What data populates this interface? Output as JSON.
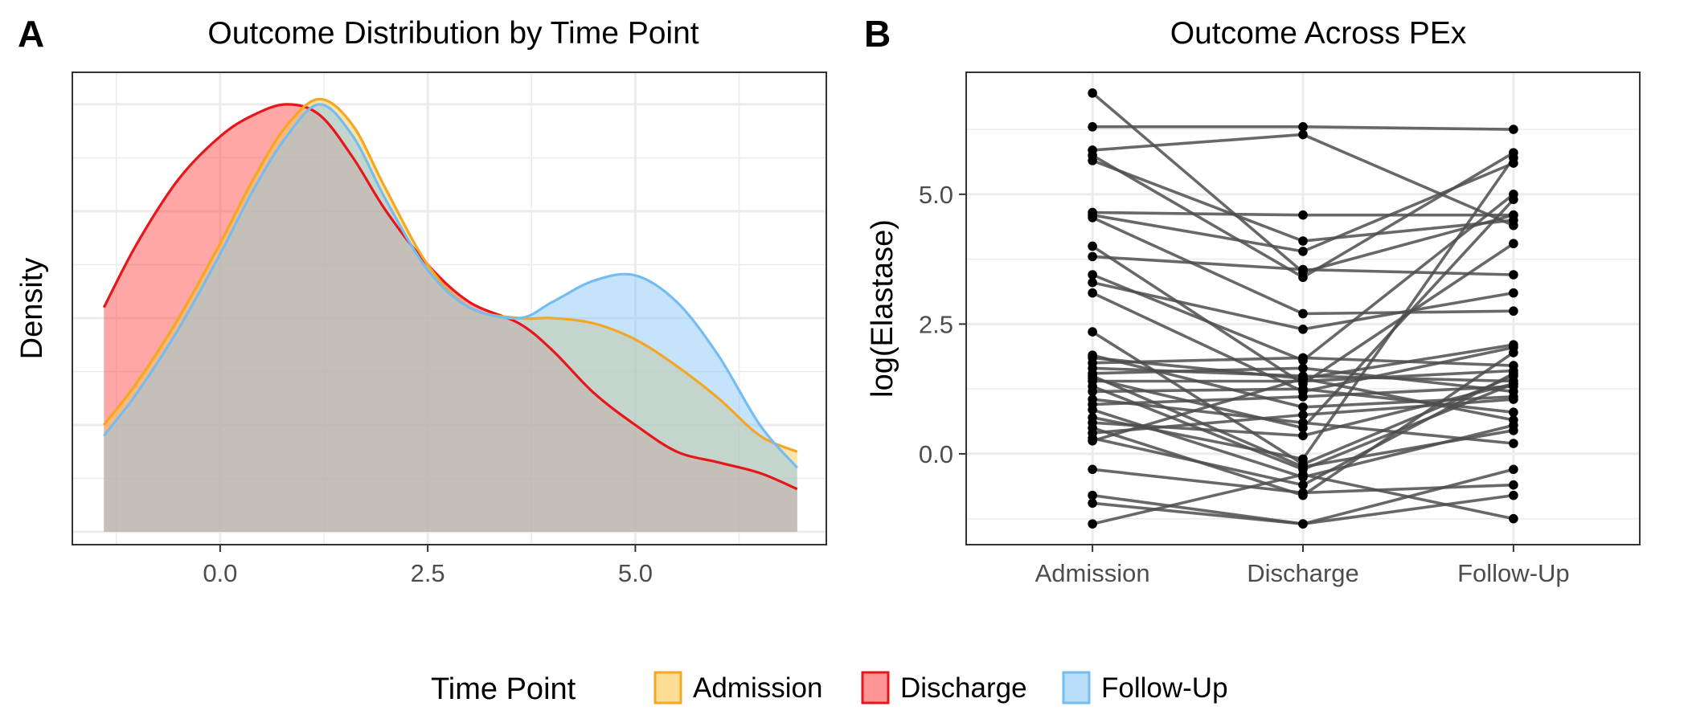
{
  "figure": {
    "legend": {
      "title": "Time Point",
      "placement": "bottom",
      "entries": [
        {
          "label": "Admission",
          "fill": "#F9C74F",
          "stroke": "#F5A623"
        },
        {
          "label": "Discharge",
          "fill": "#FF4D4D",
          "stroke": "#E8161B"
        },
        {
          "label": "Follow-Up",
          "fill": "#8CC8F5",
          "stroke": "#73BDF2"
        }
      ]
    }
  },
  "chart_data": [
    {
      "panel": "A",
      "type": "area",
      "title": "Outcome Distribution by Time Point",
      "xlabel": "",
      "ylabel": "Density",
      "xlim": [
        -1.78,
        7.3
      ],
      "ylim": [
        -0.012,
        0.43
      ],
      "xticks": [
        0,
        2.5,
        5
      ],
      "xtick_labels": [
        "0.0",
        "2.5",
        "5.0"
      ],
      "y_tick_labels_shown": false,
      "grid": true,
      "series": [
        {
          "name": "Discharge",
          "color": "#E8161B",
          "fill": "#FF4D4D",
          "x": [
            -1.4,
            -1.0,
            -0.5,
            0.0,
            0.4,
            0.8,
            1.2,
            1.6,
            2.0,
            2.5,
            3.0,
            3.6,
            4.0,
            4.5,
            5.0,
            5.5,
            6.0,
            6.5,
            6.95
          ],
          "y": [
            0.21,
            0.27,
            0.33,
            0.37,
            0.39,
            0.4,
            0.39,
            0.35,
            0.3,
            0.25,
            0.215,
            0.195,
            0.17,
            0.13,
            0.1,
            0.075,
            0.065,
            0.055,
            0.04
          ]
        },
        {
          "name": "Admission",
          "color": "#F5A623",
          "fill": "#F9C74F",
          "x": [
            -1.4,
            -1.0,
            -0.5,
            0.0,
            0.4,
            0.8,
            1.2,
            1.6,
            2.0,
            2.5,
            3.0,
            3.6,
            4.0,
            4.5,
            5.0,
            5.5,
            6.0,
            6.5,
            6.95
          ],
          "y": [
            0.1,
            0.14,
            0.2,
            0.27,
            0.33,
            0.38,
            0.405,
            0.38,
            0.32,
            0.25,
            0.21,
            0.2,
            0.2,
            0.195,
            0.18,
            0.155,
            0.125,
            0.09,
            0.075
          ]
        },
        {
          "name": "Follow-Up",
          "color": "#73BDF2",
          "fill": "#8CC8F5",
          "x": [
            -1.4,
            -1.0,
            -0.5,
            0.0,
            0.4,
            0.8,
            1.2,
            1.6,
            2.0,
            2.5,
            3.0,
            3.6,
            4.0,
            4.5,
            5.0,
            5.5,
            6.0,
            6.5,
            6.95
          ],
          "y": [
            0.09,
            0.13,
            0.19,
            0.26,
            0.32,
            0.37,
            0.4,
            0.37,
            0.31,
            0.245,
            0.21,
            0.2,
            0.215,
            0.235,
            0.24,
            0.215,
            0.165,
            0.1,
            0.06
          ]
        }
      ]
    },
    {
      "panel": "B",
      "type": "line",
      "title": "Outcome Across PEx",
      "xlabel": "",
      "ylabel": "log(Elastase)",
      "categories": [
        "Admission",
        "Discharge",
        "Follow-Up"
      ],
      "ylim": [
        -1.75,
        7.35
      ],
      "yticks": [
        0,
        2.5,
        5
      ],
      "ytick_labels": [
        "0.0",
        "2.5",
        "5.0"
      ],
      "grid": true,
      "line_color": "#4d4d4d",
      "point_color": "#000000",
      "subjects": [
        [
          6.95,
          3.5,
          4.6
        ],
        [
          6.3,
          6.3,
          6.25
        ],
        [
          5.85,
          6.15,
          4.4
        ],
        [
          5.75,
          3.4,
          5.8
        ],
        [
          5.65,
          4.1,
          4.5
        ],
        [
          4.65,
          4.6,
          4.6
        ],
        [
          4.6,
          3.9,
          5.6
        ],
        [
          4.55,
          2.7,
          2.75
        ],
        [
          4.0,
          1.35,
          4.05
        ],
        [
          3.8,
          3.55,
          3.45
        ],
        [
          3.45,
          1.8,
          5.0
        ],
        [
          3.3,
          2.4,
          3.1
        ],
        [
          3.1,
          1.2,
          2.05
        ],
        [
          2.35,
          -0.2,
          1.5
        ],
        [
          1.9,
          0.9,
          1.1
        ],
        [
          1.85,
          1.45,
          2.1
        ],
        [
          1.75,
          1.85,
          1.7
        ],
        [
          1.65,
          1.5,
          1.4
        ],
        [
          1.55,
          1.65,
          1.2
        ],
        [
          1.5,
          -0.25,
          0.45
        ],
        [
          1.45,
          0.5,
          4.9
        ],
        [
          1.4,
          1.4,
          1.6
        ],
        [
          1.3,
          -0.3,
          1.35
        ],
        [
          1.2,
          1.25,
          0.8
        ],
        [
          1.05,
          0.6,
          0.2
        ],
        [
          0.95,
          1.1,
          1.3
        ],
        [
          0.85,
          -0.45,
          0.55
        ],
        [
          0.7,
          -0.1,
          5.7
        ],
        [
          0.6,
          0.35,
          1.35
        ],
        [
          0.5,
          -0.8,
          1.95
        ],
        [
          0.4,
          0.75,
          1.05
        ],
        [
          0.3,
          -0.6,
          1.55
        ],
        [
          0.25,
          1.45,
          0.65
        ],
        [
          -0.3,
          -0.75,
          -0.6
        ],
        [
          -0.8,
          -1.35,
          -0.3
        ],
        [
          -0.95,
          -1.35,
          -0.8
        ],
        [
          -1.35,
          -0.4,
          -1.25
        ]
      ]
    }
  ]
}
